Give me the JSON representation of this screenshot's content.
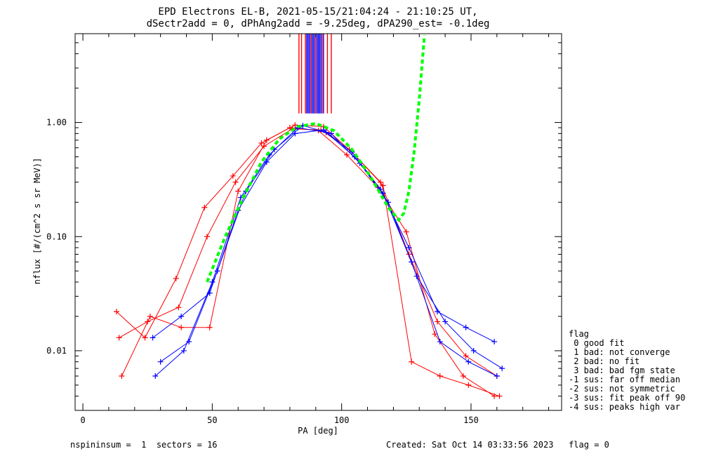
{
  "title_line1": "EPD Electrons EL-B, 2021-05-15/21:04:24 - 21:10:25 UT,",
  "title_line2": "dSectr2add = 0, dPhAng2add = -9.25deg, dPA290_est=  -0.1deg",
  "footer": {
    "left": "nspininsum =  1  sectors = 16",
    "right": "Created: Sat Oct 14 03:33:56 2023   flag = 0"
  },
  "legend": {
    "title": "flag",
    "items": [
      " 0 good fit",
      " 1 bad: not converge",
      " 2 bad: no fit",
      " 3 bad: bad fgm state",
      "-1 sus: far off median",
      "-2 sus: not symmetric",
      "-3 sus: fit peak off 90",
      "-4 sus: peaks high var"
    ]
  },
  "colors": {
    "red": "#ff0000",
    "blue": "#0000ff",
    "fit": "#00ff00",
    "axes": "#000000"
  },
  "chart_data": {
    "type": "line",
    "xlabel": "PA [deg]",
    "ylabel": "nflux [#/(cm^2 s sr MeV)]",
    "xlim": [
      -3,
      185
    ],
    "ylim": [
      0.003,
      6.0
    ],
    "log_y": true,
    "x_ticks": [
      0,
      50,
      100,
      150
    ],
    "x_tick_labels": [
      "0",
      "50",
      "100",
      "150"
    ],
    "y_ticks": [
      0.01,
      0.1,
      1.0
    ],
    "y_tick_labels": [
      "0.01",
      "0.10",
      "1.00"
    ],
    "series": [
      {
        "color": "red",
        "x": [
          14,
          25,
          37,
          48,
          59,
          70,
          81,
          92,
          103,
          115,
          126,
          137,
          148,
          160
        ],
        "y": [
          0.013,
          0.018,
          0.024,
          0.1,
          0.3,
          0.62,
          0.88,
          0.86,
          0.58,
          0.3,
          0.07,
          0.018,
          0.009,
          0.006
        ]
      },
      {
        "color": "red",
        "x": [
          15,
          26,
          38,
          49,
          60,
          71,
          82,
          93,
          104,
          116,
          127,
          138,
          149,
          161
        ],
        "y": [
          0.006,
          0.02,
          0.016,
          0.016,
          0.25,
          0.7,
          0.95,
          0.92,
          0.55,
          0.28,
          0.008,
          0.006,
          0.005,
          0.004
        ]
      },
      {
        "color": "red",
        "x": [
          13,
          24,
          36,
          47,
          58,
          69,
          80,
          91,
          102,
          114,
          125,
          136,
          147,
          159
        ],
        "y": [
          0.022,
          0.013,
          0.043,
          0.18,
          0.34,
          0.66,
          0.9,
          0.85,
          0.52,
          0.27,
          0.11,
          0.014,
          0.006,
          0.004
        ]
      },
      {
        "color": "blue",
        "x": [
          27,
          38,
          49,
          60,
          71,
          82,
          93,
          104,
          115,
          126,
          137,
          148,
          159
        ],
        "y": [
          0.013,
          0.02,
          0.032,
          0.17,
          0.45,
          0.8,
          0.86,
          0.55,
          0.26,
          0.08,
          0.022,
          0.016,
          0.012
        ]
      },
      {
        "color": "blue",
        "x": [
          28,
          39,
          50,
          61,
          72,
          83,
          94,
          105,
          116,
          127,
          138,
          149,
          160
        ],
        "y": [
          0.006,
          0.01,
          0.04,
          0.22,
          0.52,
          0.9,
          0.82,
          0.5,
          0.24,
          0.06,
          0.012,
          0.008,
          0.006
        ]
      },
      {
        "color": "blue",
        "x": [
          30,
          41,
          52,
          63,
          74,
          85,
          96,
          107,
          118,
          129,
          140,
          151,
          162
        ],
        "y": [
          0.008,
          0.012,
          0.05,
          0.25,
          0.58,
          0.94,
          0.8,
          0.44,
          0.2,
          0.045,
          0.018,
          0.01,
          0.007
        ]
      }
    ],
    "fit_curve": {
      "color": "fit",
      "x": [
        48,
        55,
        62,
        69,
        76,
        83,
        90,
        97,
        104,
        111,
        118,
        122,
        124,
        126,
        128,
        130,
        132
      ],
      "y": [
        0.04,
        0.1,
        0.22,
        0.45,
        0.72,
        0.92,
        0.98,
        0.85,
        0.58,
        0.34,
        0.18,
        0.14,
        0.16,
        0.25,
        0.55,
        1.6,
        5.8
      ]
    },
    "peak_markers": {
      "red_x": [
        83.5,
        84.5,
        86,
        88,
        90,
        92.5,
        94.5,
        96
      ],
      "blue_x": [
        86.5,
        87,
        87.5,
        88.5,
        89,
        89.5,
        90.5,
        91,
        91.5,
        92,
        93
      ],
      "y_range": [
        1.2,
        6.0
      ]
    }
  }
}
